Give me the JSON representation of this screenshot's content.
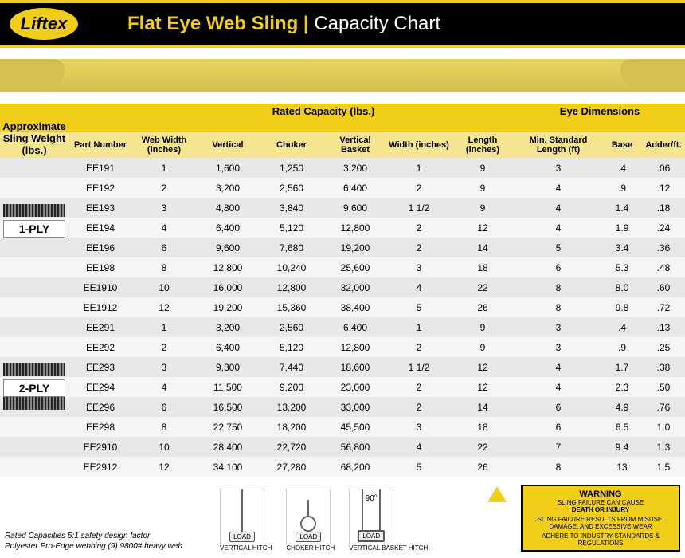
{
  "brand": "Liftex",
  "title_main": "Flat Eye Web Sling",
  "title_sep": " | ",
  "title_sub": "Capacity Chart",
  "groups": {
    "rated": "Rated Capacity (lbs.)",
    "eye": "Eye Dimensions",
    "weight": "Approximate Sling Weight (lbs.)"
  },
  "columns": {
    "part": "Part Number",
    "width": "Web Width (inches)",
    "vertical": "Vertical",
    "choker": "Choker",
    "basket": "Vertical Basket",
    "ewidth": "Width (inches)",
    "elength": "Length (inches)",
    "minlen": "Min. Standard Length (ft)",
    "base": "Base",
    "adder": "Adder/ft."
  },
  "ply1_label": "1-PLY",
  "ply2_label": "2-PLY",
  "rows1": [
    {
      "p": "EE191",
      "w": "1",
      "v": "1,600",
      "c": "1,250",
      "b": "3,200",
      "ew": "1",
      "el": "9",
      "ml": "3",
      "bs": ".4",
      "ad": ".06"
    },
    {
      "p": "EE192",
      "w": "2",
      "v": "3,200",
      "c": "2,560",
      "b": "6,400",
      "ew": "2",
      "el": "9",
      "ml": "4",
      "bs": ".9",
      "ad": ".12"
    },
    {
      "p": "EE193",
      "w": "3",
      "v": "4,800",
      "c": "3,840",
      "b": "9,600",
      "ew": "1 1/2",
      "el": "9",
      "ml": "4",
      "bs": "1.4",
      "ad": ".18"
    },
    {
      "p": "EE194",
      "w": "4",
      "v": "6,400",
      "c": "5,120",
      "b": "12,800",
      "ew": "2",
      "el": "12",
      "ml": "4",
      "bs": "1.9",
      "ad": ".24"
    },
    {
      "p": "EE196",
      "w": "6",
      "v": "9,600",
      "c": "7,680",
      "b": "19,200",
      "ew": "2",
      "el": "14",
      "ml": "5",
      "bs": "3.4",
      "ad": ".36"
    },
    {
      "p": "EE198",
      "w": "8",
      "v": "12,800",
      "c": "10,240",
      "b": "25,600",
      "ew": "3",
      "el": "18",
      "ml": "6",
      "bs": "5.3",
      "ad": ".48"
    },
    {
      "p": "EE1910",
      "w": "10",
      "v": "16,000",
      "c": "12,800",
      "b": "32,000",
      "ew": "4",
      "el": "22",
      "ml": "8",
      "bs": "8.0",
      "ad": ".60"
    },
    {
      "p": "EE1912",
      "w": "12",
      "v": "19,200",
      "c": "15,360",
      "b": "38,400",
      "ew": "5",
      "el": "26",
      "ml": "8",
      "bs": "9.8",
      "ad": ".72"
    }
  ],
  "rows2": [
    {
      "p": "EE291",
      "w": "1",
      "v": "3,200",
      "c": "2,560",
      "b": "6,400",
      "ew": "1",
      "el": "9",
      "ml": "3",
      "bs": ".4",
      "ad": ".13"
    },
    {
      "p": "EE292",
      "w": "2",
      "v": "6,400",
      "c": "5,120",
      "b": "12,800",
      "ew": "2",
      "el": "9",
      "ml": "3",
      "bs": ".9",
      "ad": ".25"
    },
    {
      "p": "EE293",
      "w": "3",
      "v": "9,300",
      "c": "7,440",
      "b": "18,600",
      "ew": "1 1/2",
      "el": "12",
      "ml": "4",
      "bs": "1.7",
      "ad": ".38"
    },
    {
      "p": "EE294",
      "w": "4",
      "v": "11,500",
      "c": "9,200",
      "b": "23,000",
      "ew": "2",
      "el": "12",
      "ml": "4",
      "bs": "2.3",
      "ad": ".50"
    },
    {
      "p": "EE296",
      "w": "6",
      "v": "16,500",
      "c": "13,200",
      "b": "33,000",
      "ew": "2",
      "el": "14",
      "ml": "6",
      "bs": "4.9",
      "ad": ".76"
    },
    {
      "p": "EE298",
      "w": "8",
      "v": "22,750",
      "c": "18,200",
      "b": "45,500",
      "ew": "3",
      "el": "18",
      "ml": "6",
      "bs": "6.5",
      "ad": "1.0"
    },
    {
      "p": "EE2910",
      "w": "10",
      "v": "28,400",
      "c": "22,720",
      "b": "56,800",
      "ew": "4",
      "el": "22",
      "ml": "7",
      "bs": "9.4",
      "ad": "1.3"
    },
    {
      "p": "EE2912",
      "w": "12",
      "v": "34,100",
      "c": "27,280",
      "b": "68,200",
      "ew": "5",
      "el": "26",
      "ml": "8",
      "bs": "13",
      "ad": "1.5"
    }
  ],
  "footnote1": "Rated Capacities 5:1 safety design factor",
  "footnote2": "Polyester Pro-Edge webbing (9) 9800# heavy web",
  "hitch1": "VERTICAL HITCH",
  "hitch2": "CHOKER HITCH",
  "hitch3": "VERTICAL BASKET HITCH",
  "angle": "90°",
  "load": "LOAD",
  "warning": {
    "title": "WARNING",
    "l1": "SLING FAILURE CAN CAUSE",
    "l2": "DEATH OR INJURY",
    "l3": "SLING FAILURE RESULTS FROM MISUSE, DAMAGE, AND EXCESSIVE WEAR",
    "l4": "ADHERE TO INDUSTRY STANDARDS & REGULATIONS"
  },
  "colors": {
    "yellow": "#f0ce1a",
    "black": "#000000",
    "header_light": "#f5e490",
    "row_alt": "#e8e8e8"
  }
}
